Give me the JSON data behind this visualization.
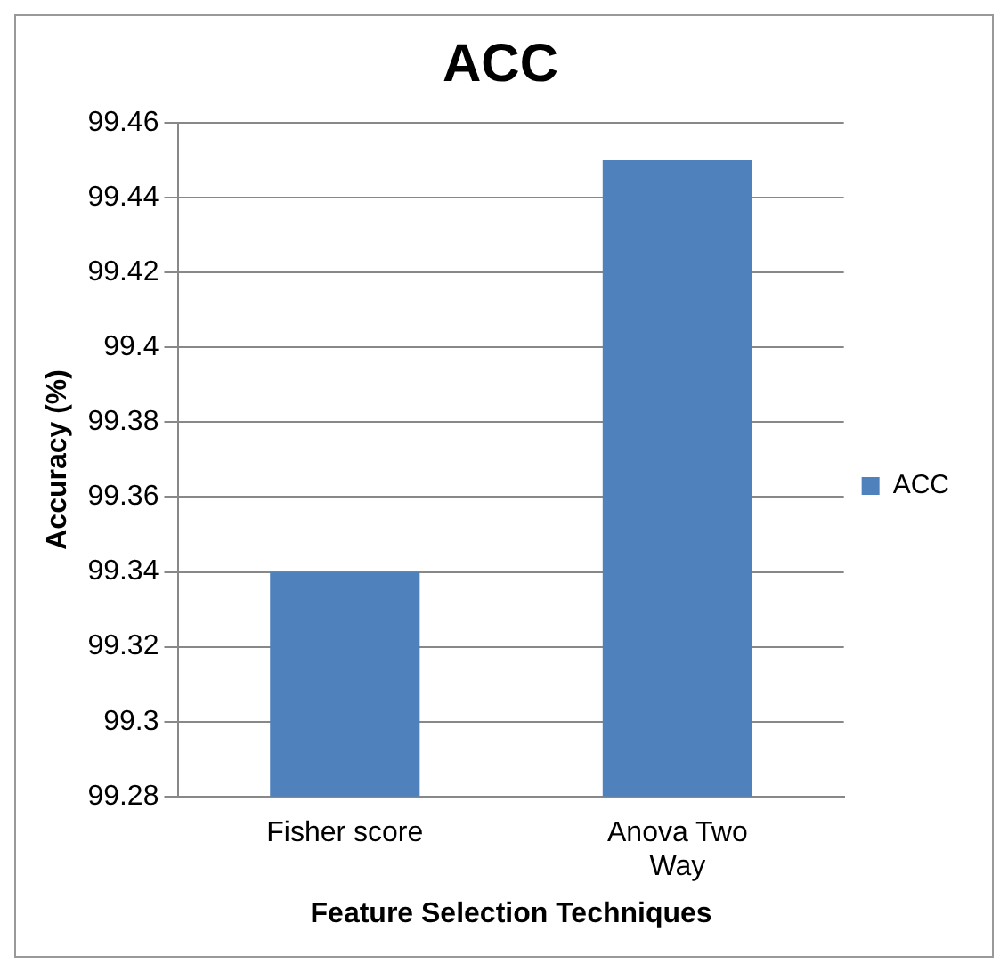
{
  "chart_data": {
    "type": "bar",
    "title": "ACC",
    "xlabel": "Feature Selection Techniques",
    "ylabel": "Accuracy (%)",
    "categories": [
      "Fisher score",
      "Anova Two Way"
    ],
    "series": [
      {
        "name": "ACC",
        "color": "#4f81bd",
        "values": [
          99.34,
          99.45
        ]
      }
    ],
    "ylim": [
      99.28,
      99.46
    ],
    "yticks": [
      99.28,
      99.3,
      99.32,
      99.34,
      99.36,
      99.38,
      99.4,
      99.42,
      99.44,
      99.46
    ],
    "grid": "y",
    "legend": "right"
  }
}
